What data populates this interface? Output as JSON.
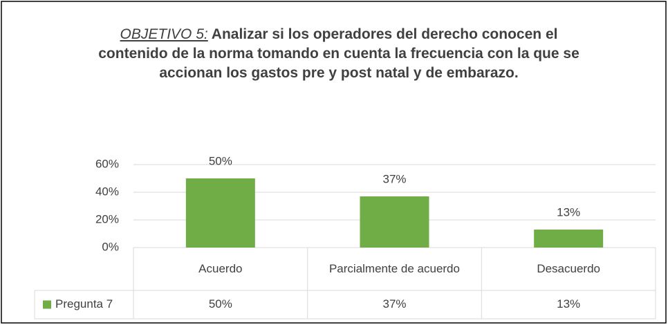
{
  "chart_data": {
    "type": "bar",
    "title_label": "OBJETIVO 5:",
    "title": "Analizar si los operadores del derecho conocen el contenido de la norma tomando en cuenta la frecuencia con la que se accionan los gastos pre y post natal y de embarazo.",
    "categories": [
      "Acuerdo",
      "Parcialmente de acuerdo",
      "Desacuerdo"
    ],
    "series": [
      {
        "name": "Pregunta 7",
        "color": "#70ad47",
        "values": [
          50,
          37,
          13
        ],
        "value_labels": [
          "50%",
          "37%",
          "13%"
        ]
      }
    ],
    "ylim": [
      0,
      60
    ],
    "yticks": [
      {
        "value": 0,
        "label": "0%"
      },
      {
        "value": 20,
        "label": "20%"
      },
      {
        "value": 40,
        "label": "40%"
      },
      {
        "value": 60,
        "label": "60%"
      }
    ],
    "grid": true
  }
}
